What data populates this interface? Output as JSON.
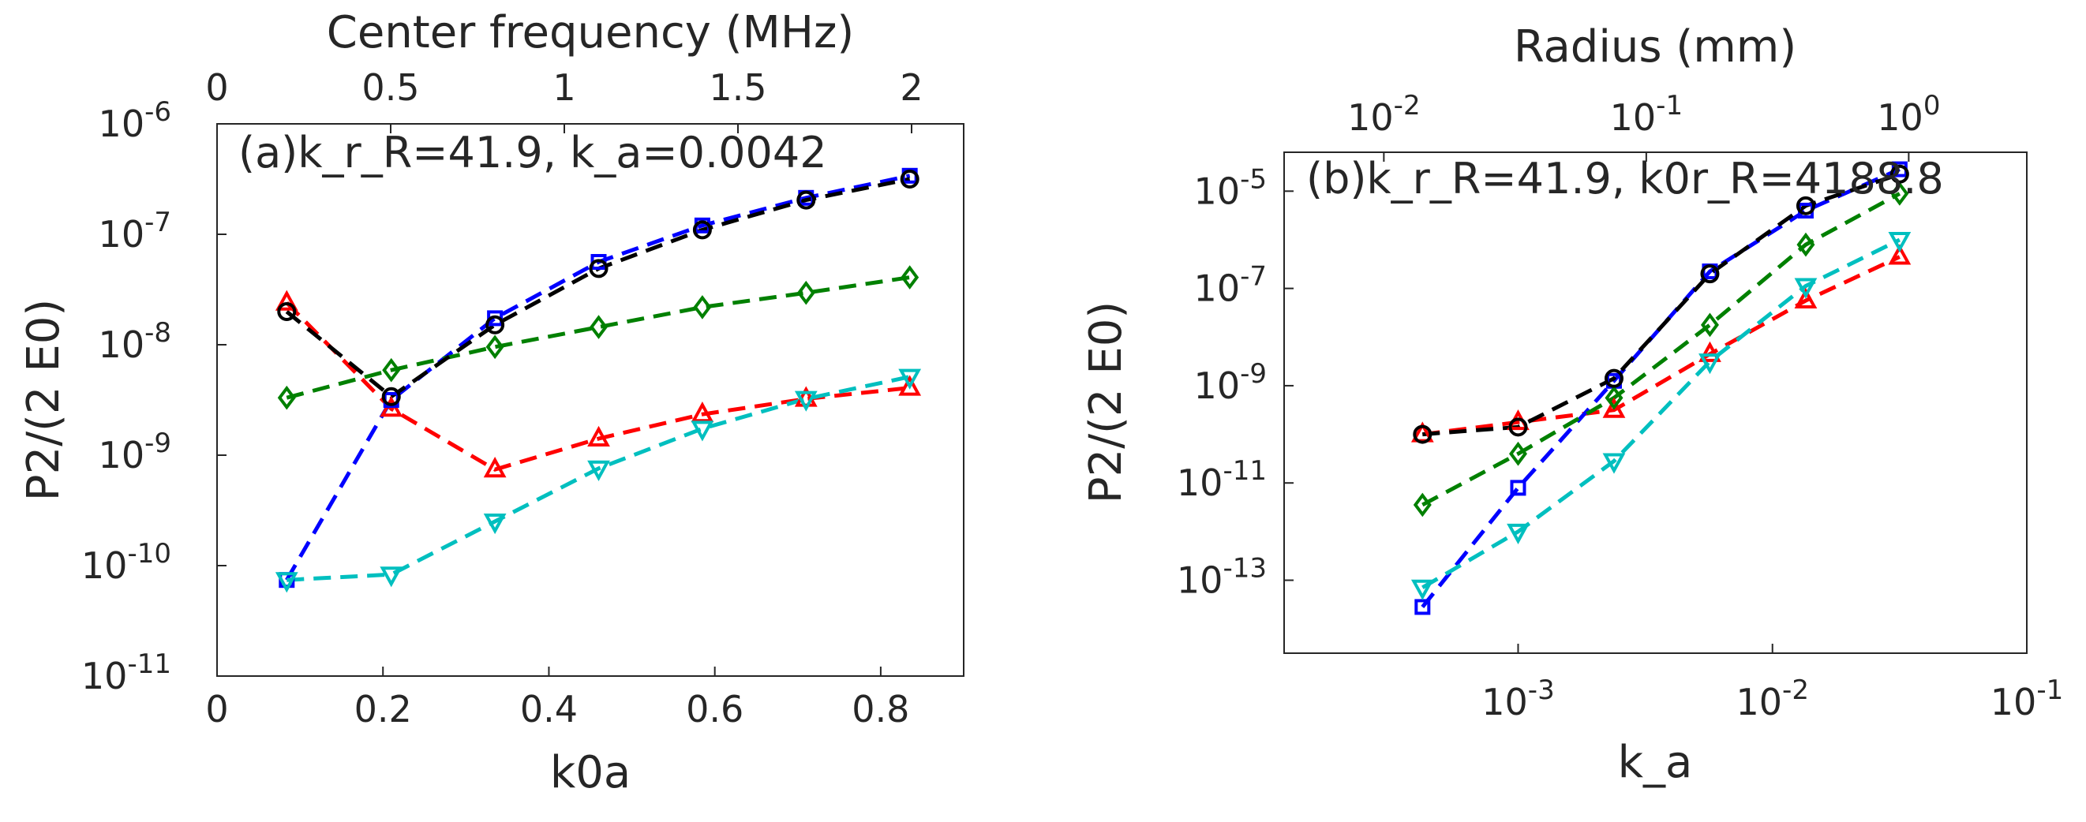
{
  "chart_data": [
    {
      "type": "line",
      "annotation": "(a)k_r_R=41.9, k_a=0.0042",
      "xlabel": "k0a",
      "ylabel": "P2/(2 E0)",
      "top_xlabel": "Center frequency (MHz)",
      "x_scale": "linear",
      "y_scale": "log",
      "xlim": [
        0,
        0.9
      ],
      "ylim_exp": [
        -11,
        -6
      ],
      "x_ticks": [
        "0",
        "0.2",
        "0.4",
        "0.6",
        "0.8"
      ],
      "x_tick_values": [
        0,
        0.2,
        0.4,
        0.6,
        0.8
      ],
      "top_x_ticks": [
        "0",
        "0.5",
        "1",
        "1.5",
        "2"
      ],
      "top_x_tick_values": [
        0,
        0.5,
        1,
        1.5,
        2
      ],
      "top_xlim": [
        0,
        2.15
      ],
      "y_tick_exponents": [
        "-6",
        "-7",
        "-8",
        "-9",
        "-10",
        "-11"
      ],
      "x": [
        0.084,
        0.21,
        0.335,
        0.46,
        0.585,
        0.71,
        0.835
      ],
      "series": [
        {
          "name": "red-triangle-up",
          "color": "#ff0000",
          "marker": "triangle-up",
          "log10_values": [
            -7.62,
            -8.58,
            -9.13,
            -8.85,
            -8.63,
            -8.49,
            -8.39
          ]
        },
        {
          "name": "blue-square",
          "color": "#0000ff",
          "marker": "square",
          "log10_values": [
            -10.13,
            -8.5,
            -7.76,
            -7.25,
            -6.92,
            -6.67,
            -6.47
          ]
        },
        {
          "name": "green-diamond",
          "color": "#008000",
          "marker": "diamond",
          "log10_values": [
            -8.48,
            -8.23,
            -8.02,
            -7.84,
            -7.66,
            -7.53,
            -7.39
          ]
        },
        {
          "name": "cyan-triangle-down",
          "color": "#00bfbf",
          "marker": "triangle-down",
          "log10_values": [
            -10.13,
            -10.08,
            -9.6,
            -9.12,
            -8.76,
            -8.49,
            -8.29
          ]
        },
        {
          "name": "black-circle",
          "color": "#000000",
          "marker": "circle",
          "log10_values": [
            -7.7,
            -8.47,
            -7.82,
            -7.31,
            -6.96,
            -6.69,
            -6.5
          ]
        }
      ]
    },
    {
      "type": "line",
      "annotation": "(b)k_r_R=41.9, k0r_R=4188.8",
      "xlabel": "k_a",
      "ylabel": "P2/(2 E0)",
      "top_xlabel": "Radius (mm)",
      "x_scale": "log",
      "y_scale": "log",
      "xlim_exp": [
        -3.92,
        -1
      ],
      "ylim_exp": [
        -14.5,
        -4.2
      ],
      "x_tick_exponents": [
        "-3",
        "-2",
        "-1"
      ],
      "top_x_tick_exponents": [
        "-2",
        "-1",
        "0"
      ],
      "top_xlim_exp": [
        -2.38,
        0.45
      ],
      "y_tick_exponents": [
        "-5",
        "-7",
        "-9",
        "-11",
        "-13"
      ],
      "x_log10": [
        -3.376,
        -3.0,
        -2.623,
        -2.246,
        -1.869,
        -1.5
      ],
      "series": [
        {
          "name": "red-triangle-up",
          "color": "#ff0000",
          "marker": "triangle-up",
          "log10_values": [
            -10.0,
            -9.75,
            -9.5,
            -8.35,
            -7.25,
            -6.35
          ]
        },
        {
          "name": "blue-square",
          "color": "#0000ff",
          "marker": "square",
          "log10_values": [
            -13.55,
            -11.1,
            -8.9,
            -6.65,
            -5.4,
            -4.55
          ]
        },
        {
          "name": "green-diamond",
          "color": "#008000",
          "marker": "diamond",
          "log10_values": [
            -11.45,
            -10.4,
            -9.25,
            -7.75,
            -6.1,
            -5.05
          ]
        },
        {
          "name": "cyan-triangle-down",
          "color": "#00bfbf",
          "marker": "triangle-down",
          "log10_values": [
            -13.15,
            -12.0,
            -10.55,
            -8.5,
            -6.95,
            -6.0
          ]
        },
        {
          "name": "black-circle",
          "color": "#000000",
          "marker": "circle",
          "log10_values": [
            -10.0,
            -9.85,
            -8.85,
            -6.7,
            -5.3,
            -4.65
          ]
        }
      ]
    }
  ]
}
